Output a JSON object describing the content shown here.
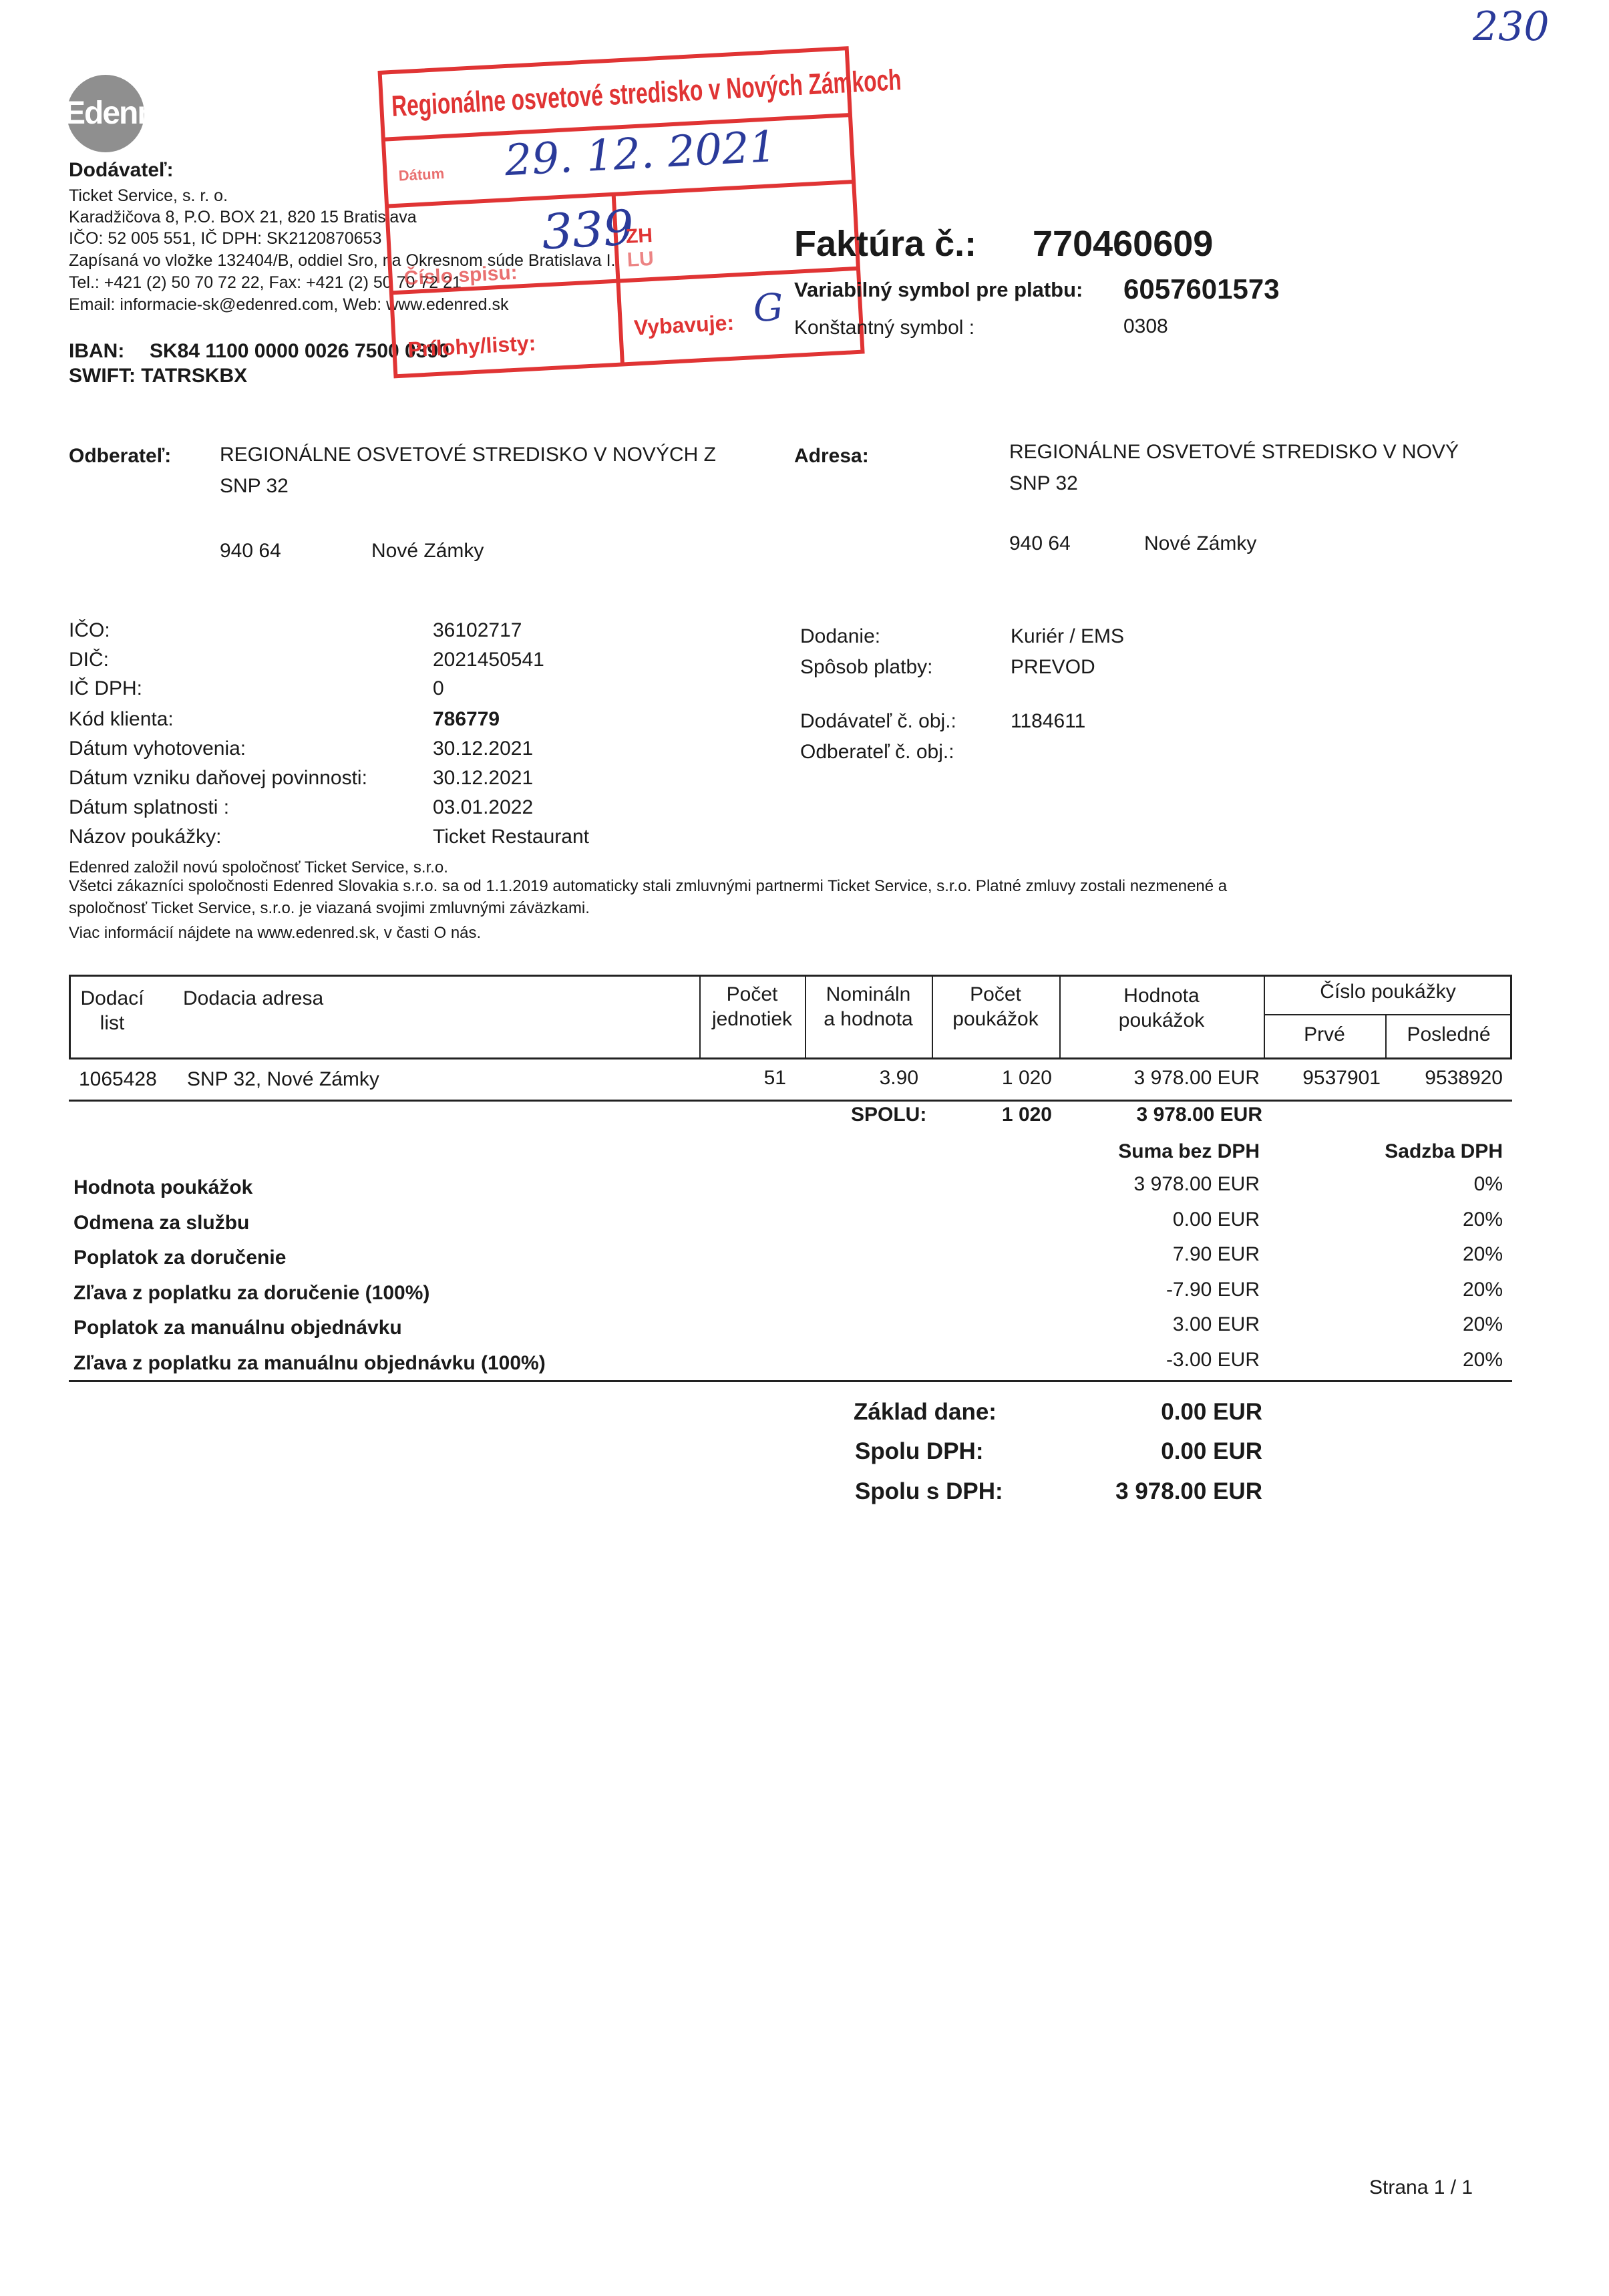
{
  "page_number_handwritten": "230",
  "logo": {
    "text": "Edenred"
  },
  "supplier": {
    "heading": "Dodávateľ:",
    "lines": [
      "Ticket Service, s. r. o.",
      "Karadžičova 8, P.O. BOX 21, 820 15 Bratislava",
      "IČO: 52 005 551, IČ DPH: SK2120870653",
      "Zapísaná vo vložke 132404/B, oddiel Sro, na Okresnom súde Bratislava I.",
      "Tel.: +421 (2) 50 70 72 22, Fax: +421 (2) 50 70 72 21",
      "Email: informacie-sk@edenred.com, Web: www.edenred.sk"
    ],
    "iban_label": "IBAN:",
    "iban": "SK84 1100 0000 0026 7500 0390",
    "swift": "SWIFT: TATRSKBX"
  },
  "stamp": {
    "title": "Regionálne osvetové stredisko v Nových Zámkoch",
    "date_label": "Dátum",
    "date": "29. 12. 2021",
    "number": "339",
    "zh": "ZH",
    "lu": "LU",
    "cislo_label": "Číslo spisu:",
    "prilohy_label": "Prílohy/listy:",
    "vybavuje_label": "Vybavuje:",
    "vybavuje": "G",
    "color": "#e03434"
  },
  "invoice": {
    "title_label": "Faktúra č.:",
    "number": "770460609",
    "vs_label": "Variabilný symbol pre platbu:",
    "vs": "6057601573",
    "ks_label": "Konštantný symbol :",
    "ks": "0308"
  },
  "customer": {
    "label": "Odberateľ:",
    "name": "REGIONÁLNE OSVETOVÉ STREDISKO V NOVÝCH Z",
    "street": "SNP 32",
    "zip": "940 64",
    "city": "Nové Zámky"
  },
  "address": {
    "label": "Adresa:",
    "name": "REGIONÁLNE OSVETOVÉ STREDISKO V NOVÝ",
    "street": "SNP 32",
    "zip": "940 64",
    "city": "Nové Zámky"
  },
  "details": [
    {
      "label": "IČO:",
      "value": "36102717"
    },
    {
      "label": "DIČ:",
      "value": "2021450541"
    },
    {
      "label": "IČ DPH:",
      "value": "0"
    },
    {
      "label": "Kód  klienta:",
      "value": "786779"
    },
    {
      "label": "Dátum vyhotovenia:",
      "value": "30.12.2021"
    },
    {
      "label": "Dátum vzniku daňovej povinnosti:",
      "value": "30.12.2021"
    },
    {
      "label": "Dátum splatnosti :",
      "value": "03.01.2022"
    },
    {
      "label": "Názov poukážky:",
      "value": "Ticket Restaurant"
    }
  ],
  "delivery": [
    {
      "label": "Dodanie:",
      "value": "Kuriér / EMS"
    },
    {
      "label": "Spôsob platby:",
      "value": "PREVOD"
    },
    {
      "label": "Dodávateľ č. obj.:",
      "value": "1184611"
    },
    {
      "label": "Odberateľ č. obj.:",
      "value": ""
    }
  ],
  "notes": [
    "Edenred založil novú spoločnosť Ticket Service, s.r.o.",
    "Všetci zákazníci  spoločnosti Edenred Slovakia s.r.o. sa od 1.1.2019 automaticky stali zmluvnými partnermi Ticket Service, s.r.o. Platné zmluvy zostali nezmenené a",
    "spoločnosť Ticket Service, s.r.o. je viazaná svojimi zmluvnými záväzkami.",
    "Viac informácií nájdete na www.edenred.sk, v časti O nás."
  ],
  "table": {
    "headers": {
      "list1": "Dodací",
      "list2": "list",
      "address": "Dodacia adresa",
      "units1": "Počet",
      "units2": "jednotiek",
      "nominal1": "Nomináln",
      "nominal2": "a hodnota",
      "count1": "Počet",
      "count2": "poukážok",
      "value1": "Hodnota",
      "value2": "poukážok",
      "voucher_no": "Číslo poukážky",
      "first": "Prvé",
      "last": "Posledné"
    },
    "rows": [
      {
        "list": "1065428",
        "address": "SNP 32, Nové Zámky",
        "units": "51",
        "nominal": "3.90",
        "count": "1 020",
        "value": "3 978.00 EUR",
        "first": "9537901",
        "last": "9538920"
      }
    ],
    "total_label": "SPOLU:",
    "total_count": "1 020",
    "total_value": "3 978.00 EUR"
  },
  "summary": {
    "col_amount": "Suma bez DPH",
    "col_rate": "Sadzba DPH",
    "rows": [
      {
        "label": "Hodnota poukážok",
        "amount": "3 978.00 EUR",
        "rate": "0%"
      },
      {
        "label": "Odmena za službu",
        "amount": "0.00 EUR",
        "rate": "20%"
      },
      {
        "label": "Poplatok za doručenie",
        "amount": "7.90 EUR",
        "rate": "20%"
      },
      {
        "label": "Zľava z poplatku za doručenie (100%)",
        "amount": "-7.90 EUR",
        "rate": "20%"
      },
      {
        "label": "Poplatok za manuálnu objednávku",
        "amount": "3.00 EUR",
        "rate": "20%"
      },
      {
        "label": "Zľava z poplatku za manuálnu objednávku (100%)",
        "amount": "-3.00 EUR",
        "rate": "20%"
      }
    ]
  },
  "totals": [
    {
      "label": "Základ dane:",
      "value": "0.00 EUR"
    },
    {
      "label": "Spolu DPH:",
      "value": "0.00 EUR"
    },
    {
      "label": "Spolu s DPH:",
      "value": "3 978.00 EUR"
    }
  ],
  "footer": {
    "page": "Strana 1 / 1"
  }
}
